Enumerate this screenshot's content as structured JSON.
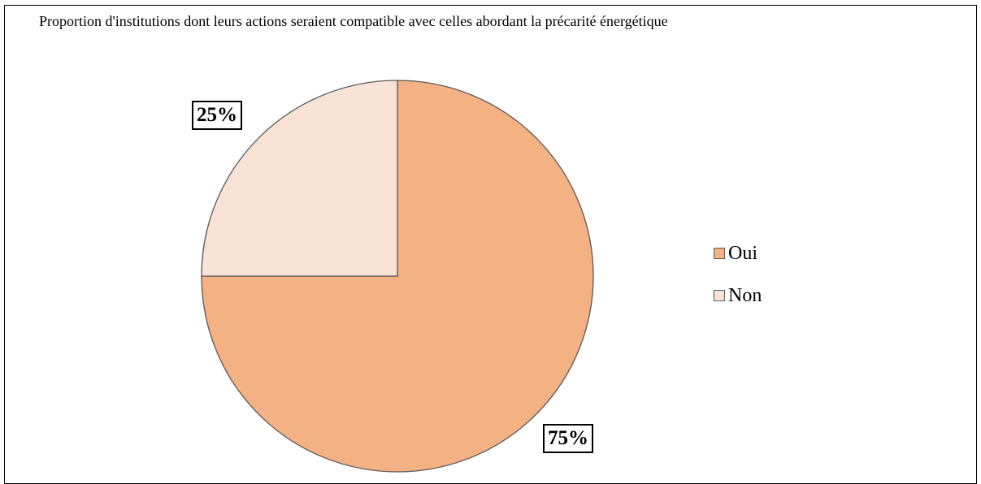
{
  "chart_data": {
    "type": "pie",
    "title": "Proportion d'institutions dont leurs actions seraient compatible avec celles abordant la précarité énergétique",
    "categories": [
      "Oui",
      "Non"
    ],
    "values": [
      75,
      25
    ],
    "data_labels": [
      "75%",
      "25%"
    ],
    "colors": [
      "#f4b183",
      "#f9e3d6"
    ],
    "legend_position": "right",
    "start_angle": "12 o'clock, clockwise"
  }
}
